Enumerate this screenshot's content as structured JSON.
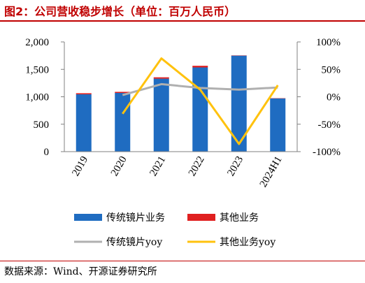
{
  "title": "图2：公司营收稳步增长（单位：百万人民币）",
  "source": "数据来源：Wind、开源证券研究所",
  "colors": {
    "accent": "#c00000",
    "bar_main": "#1f6cc1",
    "bar_other": "#e02020",
    "line_main": "#b0b0b0",
    "line_other": "#ffc20e"
  },
  "chart_data": {
    "type": "bar",
    "categories": [
      "2019",
      "2020",
      "2021",
      "2022",
      "2023",
      "2024H1"
    ],
    "series": [
      {
        "name": "传统镜片业务",
        "kind": "bar",
        "axis": "left",
        "values": [
          1045,
          1070,
          1330,
          1535,
          1750,
          970
        ]
      },
      {
        "name": "其他业务",
        "kind": "bar",
        "axis": "left",
        "values": [
          20,
          20,
          25,
          30,
          5,
          5
        ]
      },
      {
        "name": "传统镜片yoy",
        "kind": "line",
        "axis": "right",
        "values": [
          null,
          3,
          23,
          16,
          13,
          17
        ]
      },
      {
        "name": "其他业务yoy",
        "kind": "line",
        "axis": "right",
        "values": [
          null,
          -31,
          70,
          13,
          -86,
          21
        ]
      }
    ],
    "y_left": {
      "min": 0,
      "max": 2000,
      "ticks": [
        "0",
        "500",
        "1,000",
        "1,500",
        "2,000"
      ]
    },
    "y_right": {
      "min": -100,
      "max": 100,
      "ticks": [
        "-100%",
        "-50%",
        "0%",
        "50%",
        "100%"
      ]
    },
    "legend_position": "bottom",
    "grid": false
  }
}
